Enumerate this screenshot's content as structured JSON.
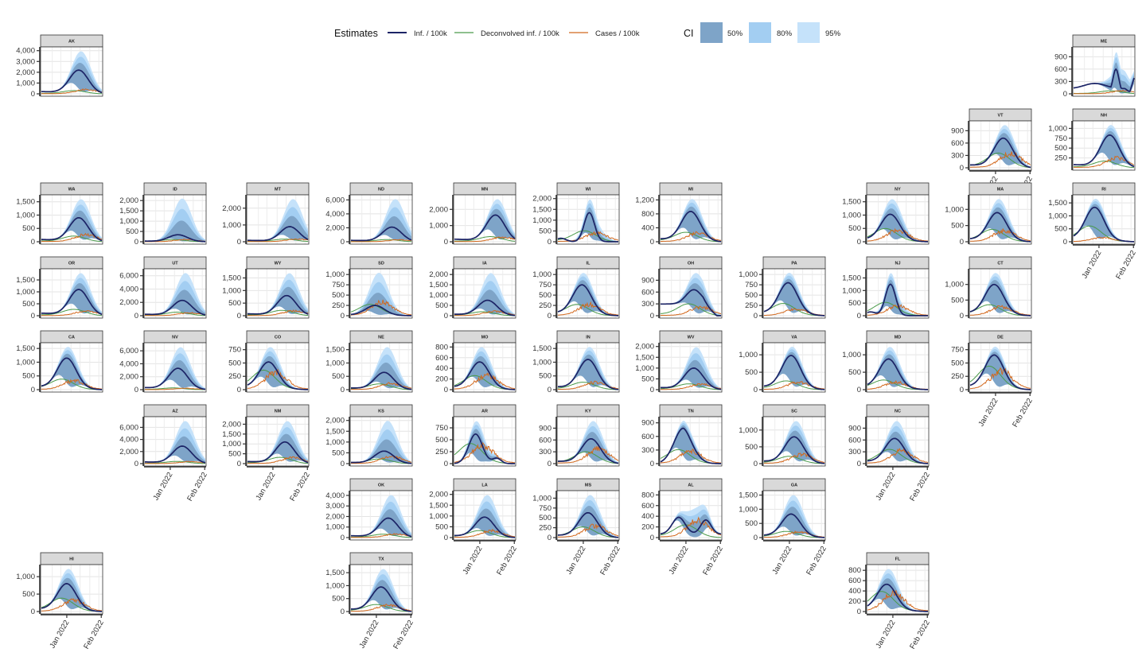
{
  "legend": {
    "estimates_title": "Estimates",
    "ci_title": "CI",
    "lines": [
      {
        "label": "Inf. / 100k",
        "color": "#1c2466"
      },
      {
        "label": "Deconvolved inf. / 100k",
        "color": "#4a9a4a"
      },
      {
        "label": "Cases / 100k",
        "color": "#d2691e"
      }
    ],
    "bands": [
      {
        "label": "50%",
        "color": "#7ea4c8"
      },
      {
        "label": "80%",
        "color": "#a3cef2"
      },
      {
        "label": "95%",
        "color": "#c5e2fa"
      }
    ]
  },
  "x_axis_labels": [
    "Jan 2022",
    "Feb 2022"
  ],
  "chart_data": {
    "type": "line",
    "layout": "geofacet US states, small multiples",
    "grid": true,
    "states": [
      {
        "id": "AK",
        "row": 0,
        "col": 0,
        "yticks": [
          0,
          1000,
          2000,
          3000,
          4000
        ],
        "ymax": 4200,
        "peak": 0.62,
        "inf": 2200,
        "dec": 280,
        "cases": 380
      },
      {
        "id": "ME",
        "row": 0,
        "col": 10,
        "yticks": [
          0,
          300,
          600,
          900
        ],
        "ymax": 1100,
        "peak": 0.7,
        "inf": 600,
        "dec": 70,
        "cases": 70,
        "shape": "me"
      },
      {
        "id": "VT",
        "row": 1,
        "col": 9,
        "yticks": [
          0,
          300,
          600,
          900
        ],
        "ymax": 1100,
        "peak": 0.55,
        "inf": 720,
        "dec": 330,
        "cases": 320,
        "xaxis": true
      },
      {
        "id": "NH",
        "row": 1,
        "col": 10,
        "yticks": [
          250,
          500,
          750,
          1000
        ],
        "ymax": 1150,
        "ymin": 0,
        "peak": 0.6,
        "inf": 830,
        "dec": 160,
        "cases": 230
      },
      {
        "id": "WA",
        "row": 2,
        "col": 0,
        "yticks": [
          0,
          500,
          1000,
          1500
        ],
        "ymax": 1700,
        "peak": 0.62,
        "inf": 900,
        "dec": 200,
        "cases": 250
      },
      {
        "id": "ID",
        "row": 2,
        "col": 1,
        "yticks": [
          0,
          500,
          1000,
          1500,
          2000
        ],
        "ymax": 2200,
        "peak": 0.55,
        "inf": 340,
        "dec": 100,
        "cases": 100
      },
      {
        "id": "MT",
        "row": 2,
        "col": 2,
        "yticks": [
          0,
          1000,
          2000
        ],
        "ymax": 2700,
        "peak": 0.7,
        "inf": 900,
        "dec": 150,
        "cases": 150
      },
      {
        "id": "ND",
        "row": 2,
        "col": 3,
        "yticks": [
          0,
          2000,
          4000,
          6000
        ],
        "ymax": 6500,
        "peak": 0.68,
        "inf": 2100,
        "dec": 300,
        "cases": 250
      },
      {
        "id": "MN",
        "row": 2,
        "col": 4,
        "yticks": [
          0,
          1000,
          2000
        ],
        "ymax": 2800,
        "peak": 0.68,
        "inf": 1650,
        "dec": 300,
        "cases": 250
      },
      {
        "id": "WI",
        "row": 2,
        "col": 5,
        "yticks": [
          0,
          500,
          1000,
          1500,
          2000
        ],
        "ymax": 2100,
        "peak": 0.52,
        "inf": 1350,
        "dec": 470,
        "cases": 380,
        "shape": "narrow"
      },
      {
        "id": "MI",
        "row": 2,
        "col": 6,
        "yticks": [
          0,
          400,
          800,
          1200
        ],
        "ymax": 1300,
        "peak": 0.5,
        "inf": 870,
        "dec": 250,
        "cases": 230
      },
      {
        "id": "NY",
        "row": 2,
        "col": 8,
        "yticks": [
          0,
          500,
          1000,
          1500
        ],
        "ymax": 1700,
        "peak": 0.38,
        "inf": 1030,
        "dec": 450,
        "cases": 400
      },
      {
        "id": "MA",
        "row": 2,
        "col": 9,
        "yticks": [
          0,
          500,
          1000
        ],
        "ymax": 1400,
        "peak": 0.45,
        "inf": 900,
        "dec": 350,
        "cases": 320
      },
      {
        "id": "RI",
        "row": 2,
        "col": 10,
        "yticks": [
          0,
          500,
          1000,
          1500
        ],
        "ymax": 1750,
        "peak": 0.35,
        "inf": 1330,
        "dec": 550,
        "cases": 150,
        "xaxis": true
      },
      {
        "id": "OR",
        "row": 3,
        "col": 0,
        "yticks": [
          0,
          500,
          1000,
          1500
        ],
        "ymax": 1900,
        "peak": 0.62,
        "inf": 1100,
        "dec": 250,
        "cases": 180
      },
      {
        "id": "UT",
        "row": 3,
        "col": 1,
        "yticks": [
          0,
          2000,
          4000,
          6000
        ],
        "ymax": 6800,
        "peak": 0.62,
        "inf": 2300,
        "dec": 500,
        "cases": 400
      },
      {
        "id": "WY",
        "row": 3,
        "col": 2,
        "yticks": [
          0,
          500,
          1000,
          1500
        ],
        "ymax": 1800,
        "peak": 0.65,
        "inf": 800,
        "dec": 200,
        "cases": 180
      },
      {
        "id": "SD",
        "row": 3,
        "col": 3,
        "yticks": [
          0,
          250,
          500,
          750,
          1000
        ],
        "ymax": 1100,
        "peak": 0.4,
        "inf": 250,
        "dec": 250,
        "cases": 300
      },
      {
        "id": "IA",
        "row": 3,
        "col": 4,
        "yticks": [
          0,
          500,
          1000,
          1500,
          2000
        ],
        "ymax": 2200,
        "peak": 0.55,
        "inf": 750,
        "dec": 180,
        "cases": 200
      },
      {
        "id": "IL",
        "row": 3,
        "col": 5,
        "yticks": [
          0,
          250,
          500,
          750,
          1000
        ],
        "ymax": 1100,
        "peak": 0.4,
        "inf": 750,
        "dec": 250,
        "cases": 250
      },
      {
        "id": "OH",
        "row": 3,
        "col": 6,
        "yticks": [
          0,
          300,
          600,
          900
        ],
        "ymax": 1150,
        "peak": 0.55,
        "inf": 660,
        "dec": 280,
        "cases": 200,
        "shape": "oh"
      },
      {
        "id": "PA",
        "row": 3,
        "col": 7,
        "yticks": [
          0,
          250,
          500,
          750,
          1000
        ],
        "ymax": 1100,
        "peak": 0.4,
        "inf": 800,
        "dec": 270,
        "cases": 150
      },
      {
        "id": "NJ",
        "row": 3,
        "col": 8,
        "yticks": [
          0,
          500,
          1000,
          1500
        ],
        "ymax": 1800,
        "peak": 0.38,
        "inf": 1250,
        "dec": 480,
        "cases": 350,
        "shape": "narrow"
      },
      {
        "id": "CT",
        "row": 3,
        "col": 9,
        "yticks": [
          0,
          500,
          1000
        ],
        "ymax": 1450,
        "peak": 0.4,
        "inf": 1000,
        "dec": 320,
        "cases": 260
      },
      {
        "id": "CA",
        "row": 4,
        "col": 0,
        "yticks": [
          0,
          500,
          1000,
          1500
        ],
        "ymax": 1650,
        "peak": 0.42,
        "inf": 1150,
        "dec": 350,
        "cases": 300
      },
      {
        "id": "NV",
        "row": 4,
        "col": 1,
        "yticks": [
          0,
          2000,
          4000,
          6000
        ],
        "ymax": 7000,
        "peak": 0.55,
        "inf": 3300,
        "dec": 250,
        "cases": 200
      },
      {
        "id": "CO",
        "row": 4,
        "col": 2,
        "yticks": [
          0,
          250,
          500,
          750
        ],
        "ymax": 850,
        "peak": 0.35,
        "inf": 520,
        "dec": 330,
        "cases": 300
      },
      {
        "id": "NE",
        "row": 4,
        "col": 3,
        "yticks": [
          0,
          500,
          1000,
          1500
        ],
        "ymax": 1700,
        "peak": 0.55,
        "inf": 650,
        "dec": 200,
        "cases": 220
      },
      {
        "id": "MO",
        "row": 4,
        "col": 4,
        "yticks": [
          0,
          200,
          400,
          600,
          800
        ],
        "ymax": 850,
        "peak": 0.42,
        "inf": 520,
        "dec": 240,
        "cases": 250
      },
      {
        "id": "IN",
        "row": 4,
        "col": 5,
        "yticks": [
          0,
          500,
          1000,
          1500
        ],
        "ymax": 1650,
        "peak": 0.5,
        "inf": 1100,
        "dec": 250,
        "cases": 250
      },
      {
        "id": "WV",
        "row": 4,
        "col": 6,
        "yticks": [
          0,
          500,
          1000,
          1500,
          2000
        ],
        "ymax": 2100,
        "peak": 0.55,
        "inf": 1000,
        "dec": 250,
        "cases": 230
      },
      {
        "id": "VA",
        "row": 4,
        "col": 7,
        "yticks": [
          0,
          500,
          1000
        ],
        "ymax": 1300,
        "peak": 0.45,
        "inf": 980,
        "dec": 230,
        "cases": 200
      },
      {
        "id": "MD",
        "row": 4,
        "col": 8,
        "yticks": [
          0,
          500,
          1000
        ],
        "ymax": 1300,
        "peak": 0.35,
        "inf": 880,
        "dec": 250,
        "cases": 200
      },
      {
        "id": "DE",
        "row": 4,
        "col": 9,
        "yticks": [
          0,
          250,
          500,
          750
        ],
        "ymax": 850,
        "peak": 0.4,
        "inf": 650,
        "dec": 400,
        "cases": 330,
        "xaxis": true
      },
      {
        "id": "AZ",
        "row": 5,
        "col": 1,
        "yticks": [
          0,
          2000,
          4000,
          6000
        ],
        "ymax": 7500,
        "peak": 0.62,
        "inf": 2900,
        "dec": 350,
        "cases": 300,
        "xaxis": true
      },
      {
        "id": "NM",
        "row": 5,
        "col": 2,
        "yticks": [
          0,
          500,
          1000,
          1500,
          2000
        ],
        "ymax": 2300,
        "peak": 0.62,
        "inf": 1100,
        "dec": 300,
        "cases": 280,
        "xaxis": true
      },
      {
        "id": "KS",
        "row": 5,
        "col": 3,
        "yticks": [
          0,
          500,
          1000,
          1500,
          2000
        ],
        "ymax": 2100,
        "peak": 0.55,
        "inf": 580,
        "dec": 200,
        "cases": 300
      },
      {
        "id": "AR",
        "row": 5,
        "col": 4,
        "yticks": [
          0,
          250,
          500,
          750
        ],
        "ymax": 950,
        "peak": 0.35,
        "inf": 620,
        "dec": 380,
        "cases": 350,
        "shape": "ar"
      },
      {
        "id": "KY",
        "row": 5,
        "col": 5,
        "yticks": [
          0,
          300,
          600,
          900
        ],
        "ymax": 1150,
        "peak": 0.55,
        "inf": 630,
        "dec": 280,
        "cases": 350
      },
      {
        "id": "TN",
        "row": 5,
        "col": 6,
        "yticks": [
          0,
          300,
          600,
          900
        ],
        "ymax": 1000,
        "peak": 0.38,
        "inf": 780,
        "dec": 280,
        "cases": 250,
        "shape": "tn"
      },
      {
        "id": "SC",
        "row": 5,
        "col": 7,
        "yticks": [
          0,
          500,
          1000
        ],
        "ymax": 1350,
        "peak": 0.5,
        "inf": 800,
        "dec": 200,
        "cases": 250
      },
      {
        "id": "NC",
        "row": 5,
        "col": 8,
        "yticks": [
          0,
          300,
          600,
          900
        ],
        "ymax": 1150,
        "peak": 0.45,
        "inf": 640,
        "dec": 330,
        "cases": 300,
        "xaxis": true
      },
      {
        "id": "OK",
        "row": 6,
        "col": 3,
        "yticks": [
          0,
          1000,
          2000,
          3000,
          4000
        ],
        "ymax": 4300,
        "peak": 0.62,
        "inf": 1850,
        "dec": 300,
        "cases": 300
      },
      {
        "id": "LA",
        "row": 6,
        "col": 4,
        "yticks": [
          0,
          500,
          1000,
          1500,
          2000
        ],
        "ymax": 2100,
        "peak": 0.5,
        "inf": 950,
        "dec": 300,
        "cases": 300,
        "xaxis": true
      },
      {
        "id": "MS",
        "row": 6,
        "col": 5,
        "yticks": [
          0,
          250,
          500,
          750,
          1000
        ],
        "ymax": 1150,
        "peak": 0.5,
        "inf": 630,
        "dec": 250,
        "cases": 280,
        "xaxis": true
      },
      {
        "id": "AL",
        "row": 6,
        "col": 6,
        "yticks": [
          0,
          200,
          400,
          600,
          800
        ],
        "ymax": 850,
        "peak": 0.5,
        "inf": 380,
        "dec": 220,
        "cases": 300,
        "xaxis": true,
        "shape": "al"
      },
      {
        "id": "GA",
        "row": 6,
        "col": 7,
        "yticks": [
          0,
          500,
          1000,
          1500
        ],
        "ymax": 1600,
        "peak": 0.45,
        "inf": 830,
        "dec": 200,
        "cases": 180,
        "xaxis": true
      },
      {
        "id": "HI",
        "row": 7,
        "col": 0,
        "yticks": [
          0,
          500,
          1000
        ],
        "ymax": 1300,
        "peak": 0.42,
        "inf": 800,
        "dec": 350,
        "cases": 300,
        "xaxis": true
      },
      {
        "id": "TX",
        "row": 7,
        "col": 3,
        "yticks": [
          0,
          500,
          1000,
          1500
        ],
        "ymax": 1750,
        "peak": 0.5,
        "inf": 950,
        "dec": 250,
        "cases": 230,
        "xaxis": true
      },
      {
        "id": "FL",
        "row": 7,
        "col": 8,
        "yticks": [
          0,
          200,
          400,
          600,
          800
        ],
        "ymax": 880,
        "peak": 0.32,
        "inf": 530,
        "dec": 350,
        "cases": 330,
        "xaxis": true
      }
    ]
  }
}
